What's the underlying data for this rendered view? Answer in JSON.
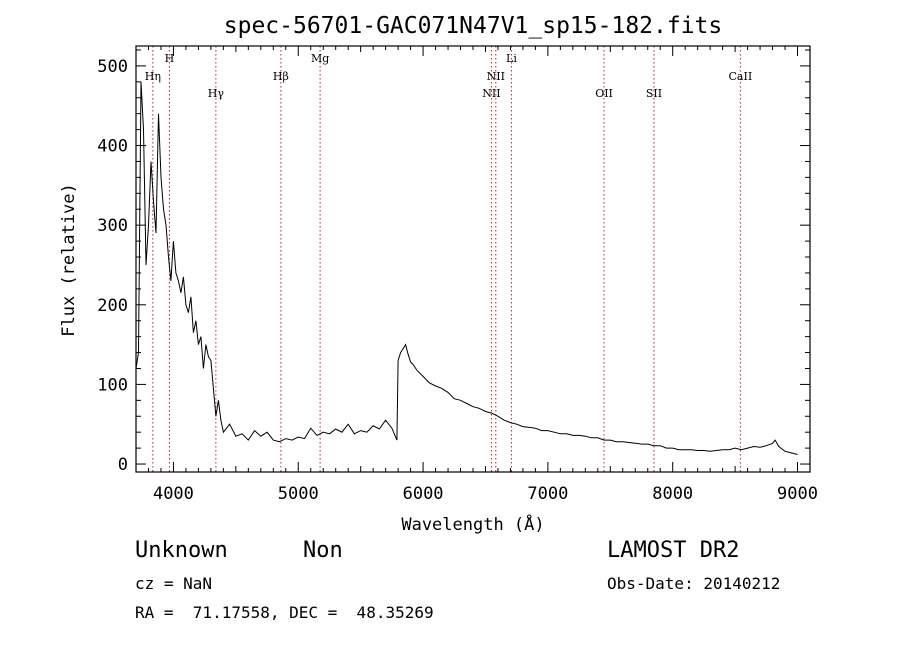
{
  "chart_data": {
    "type": "line",
    "title": "spec-56701-GAC071N47V1_sp15-182.fits",
    "xlabel": "Wavelength (Å)",
    "ylabel": "Flux (relative)",
    "xlim": [
      3700,
      9100
    ],
    "ylim": [
      -10,
      525
    ],
    "xticks": [
      4000,
      5000,
      6000,
      7000,
      8000,
      9000
    ],
    "yticks": [
      0,
      100,
      200,
      300,
      400,
      500
    ],
    "grid": false,
    "line_color": "#000000",
    "marker_color": "#b22222",
    "lines": [
      {
        "label": "Hη",
        "x": 3835,
        "row": 1
      },
      {
        "label": "H",
        "x": 3968,
        "row": 0
      },
      {
        "label": "Hγ",
        "x": 4340,
        "row": 2
      },
      {
        "label": "Hβ",
        "x": 4861,
        "row": 1
      },
      {
        "label": "Mg",
        "x": 5175,
        "row": 0
      },
      {
        "label": "NII",
        "x": 6548,
        "row": 2
      },
      {
        "label": "NII",
        "x": 6583,
        "row": 1
      },
      {
        "label": "Li",
        "x": 6708,
        "row": 0
      },
      {
        "label": "OII",
        "x": 7450,
        "row": 2
      },
      {
        "label": "SII",
        "x": 7850,
        "row": 2
      },
      {
        "label": "CaII",
        "x": 8542,
        "row": 1
      }
    ],
    "series": [
      {
        "x": [
          3700,
          3720,
          3740,
          3760,
          3780,
          3800,
          3820,
          3840,
          3860,
          3880,
          3900,
          3920,
          3940,
          3960,
          3980,
          4000,
          4020,
          4040,
          4060,
          4080,
          4100,
          4120,
          4140,
          4160,
          4180,
          4200,
          4220,
          4240,
          4260,
          4280,
          4300,
          4320,
          4340,
          4360,
          4380,
          4400,
          4450,
          4500,
          4550,
          4600,
          4650,
          4700,
          4750,
          4800,
          4850,
          4900,
          4950,
          5000,
          5050,
          5100,
          5150,
          5200,
          5250,
          5300,
          5350,
          5400,
          5450,
          5500,
          5550,
          5600,
          5650,
          5700,
          5750,
          5790,
          5800,
          5820,
          5840,
          5860,
          5880,
          5900,
          5920,
          5950,
          6000,
          6050,
          6100,
          6150,
          6200,
          6250,
          6300,
          6350,
          6400,
          6450,
          6500,
          6550,
          6600,
          6650,
          6700,
          6750,
          6800,
          6850,
          6900,
          6950,
          7000,
          7050,
          7100,
          7150,
          7200,
          7250,
          7300,
          7350,
          7400,
          7450,
          7500,
          7550,
          7600,
          7650,
          7700,
          7750,
          7800,
          7850,
          7900,
          7950,
          8000,
          8050,
          8100,
          8150,
          8200,
          8250,
          8300,
          8350,
          8400,
          8450,
          8500,
          8550,
          8600,
          8650,
          8700,
          8750,
          8800,
          8820,
          8850,
          8900,
          8950,
          9000
        ],
        "y": [
          120,
          140,
          480,
          420,
          250,
          300,
          380,
          330,
          290,
          440,
          360,
          320,
          300,
          260,
          230,
          280,
          240,
          230,
          215,
          235,
          200,
          190,
          210,
          165,
          180,
          150,
          160,
          120,
          150,
          135,
          130,
          95,
          60,
          80,
          55,
          40,
          50,
          35,
          38,
          30,
          42,
          35,
          40,
          30,
          28,
          32,
          30,
          34,
          32,
          45,
          36,
          40,
          38,
          44,
          40,
          50,
          38,
          42,
          40,
          48,
          44,
          55,
          45,
          30,
          130,
          140,
          145,
          150,
          138,
          128,
          125,
          118,
          110,
          102,
          98,
          95,
          90,
          82,
          80,
          76,
          72,
          70,
          66,
          64,
          60,
          55,
          52,
          50,
          47,
          46,
          45,
          42,
          42,
          40,
          38,
          38,
          36,
          36,
          35,
          33,
          33,
          30,
          30,
          28,
          28,
          27,
          26,
          25,
          25,
          23,
          23,
          20,
          20,
          18,
          18,
          18,
          17,
          17,
          16,
          17,
          18,
          18,
          20,
          18,
          20,
          22,
          21,
          23,
          26,
          30,
          22,
          16,
          14,
          12
        ]
      }
    ]
  },
  "info": {
    "object_class": "Unknown",
    "subclass": "Non",
    "survey": "LAMOST DR2",
    "redshift": "cz = NaN",
    "obs_date": "Obs-Date: 20140212",
    "coords": "RA =  71.17558, DEC =  48.35269"
  }
}
